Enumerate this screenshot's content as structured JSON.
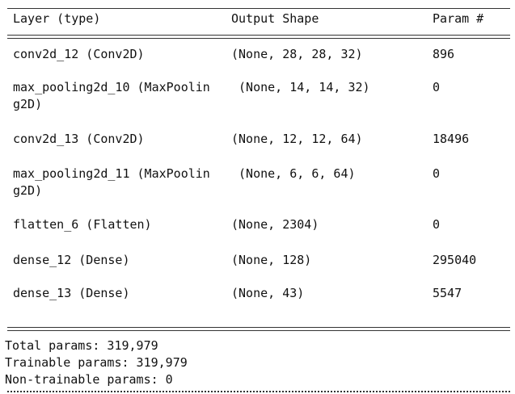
{
  "header": {
    "layer": "Layer (type)",
    "output_shape": "Output Shape",
    "params": "Param #"
  },
  "rows": [
    {
      "layer": "conv2d_12 (Conv2D)",
      "output_shape": "(None, 28, 28, 32)",
      "params": "896"
    },
    {
      "layer": "max_pooling2d_10 (MaxPoolin",
      "layer_cont": "g2D)",
      "output_shape": " (None, 14, 14, 32)",
      "params": "0"
    },
    {
      "layer": "conv2d_13 (Conv2D)",
      "output_shape": "(None, 12, 12, 64)",
      "params": "18496"
    },
    {
      "layer": "max_pooling2d_11 (MaxPoolin",
      "layer_cont": "g2D)",
      "output_shape": " (None, 6, 6, 64)",
      "params": "0"
    },
    {
      "layer": "flatten_6 (Flatten)",
      "output_shape": "(None, 2304)",
      "params": "0"
    },
    {
      "layer": "dense_12 (Dense)",
      "output_shape": "(None, 128)",
      "params": "295040"
    },
    {
      "layer": "dense_13 (Dense)",
      "output_shape": "(None, 43)",
      "params": "5547"
    }
  ],
  "summary": {
    "total": "Total params: 319,979",
    "trainable": "Trainable params: 319,979",
    "non_trainable": "Non-trainable params: 0"
  }
}
